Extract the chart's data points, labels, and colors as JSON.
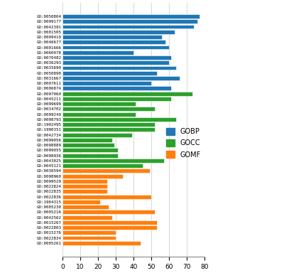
{
  "categories": [
    "GO:0050804",
    "GO:0099177",
    "GO:0042391",
    "GO:0001505",
    "GO:0009410",
    "GO:0046677",
    "GO:0001666",
    "GO:0060078",
    "GO:0070482",
    "GO:0036293",
    "GO:0035690",
    "GO:0050890",
    "GO:0031667",
    "GO:0007611",
    "GO:0006874",
    "GO:0097060",
    "GO:0045211",
    "GO:0099699",
    "GO:0034702",
    "GO:0099240",
    "GO:0098793",
    "GO:1902495",
    "GO:1990351",
    "GO:0042734",
    "GO:0099056",
    "GO:0098889",
    "GO:0099055",
    "GO:0098936",
    "GO:0043025",
    "GO:0045121",
    "GO:0030594",
    "GO:0098960",
    "GO:0099529",
    "GO:0022824",
    "GO:0022835",
    "GO:0022836",
    "GO:1904315",
    "GO:0005230",
    "GO:0005216",
    "GO:0042562",
    "GO:0015267",
    "GO:0022803",
    "GO:0015276",
    "GO:0022834",
    "GO:0005261"
  ],
  "values": [
    77,
    76,
    74,
    63,
    56,
    58,
    60,
    40,
    61,
    60,
    64,
    53,
    66,
    50,
    61,
    73,
    61,
    41,
    52,
    41,
    64,
    52,
    52,
    39,
    28,
    29,
    31,
    31,
    57,
    45,
    49,
    34,
    25,
    25,
    25,
    50,
    21,
    26,
    52,
    28,
    53,
    53,
    30,
    30,
    44
  ],
  "colors": [
    "#1f77b4",
    "#1f77b4",
    "#1f77b4",
    "#1f77b4",
    "#1f77b4",
    "#1f77b4",
    "#1f77b4",
    "#1f77b4",
    "#1f77b4",
    "#1f77b4",
    "#1f77b4",
    "#1f77b4",
    "#1f77b4",
    "#1f77b4",
    "#1f77b4",
    "#2ca02c",
    "#2ca02c",
    "#2ca02c",
    "#2ca02c",
    "#2ca02c",
    "#2ca02c",
    "#2ca02c",
    "#2ca02c",
    "#2ca02c",
    "#2ca02c",
    "#2ca02c",
    "#2ca02c",
    "#2ca02c",
    "#2ca02c",
    "#2ca02c",
    "#ff7f0e",
    "#ff7f0e",
    "#ff7f0e",
    "#ff7f0e",
    "#ff7f0e",
    "#ff7f0e",
    "#ff7f0e",
    "#ff7f0e",
    "#ff7f0e",
    "#ff7f0e",
    "#ff7f0e",
    "#ff7f0e",
    "#ff7f0e",
    "#ff7f0e",
    "#ff7f0e"
  ],
  "gobp_color": "#1f77b4",
  "gocc_color": "#2ca02c",
  "gomf_color": "#ff7f0e",
  "xlim": [
    0,
    80
  ],
  "xticks": [
    0,
    10,
    20,
    30,
    40,
    50,
    60,
    70,
    80
  ],
  "background_color": "#ffffff",
  "bar_height": 0.82,
  "grid_color": "#d0d0d0"
}
